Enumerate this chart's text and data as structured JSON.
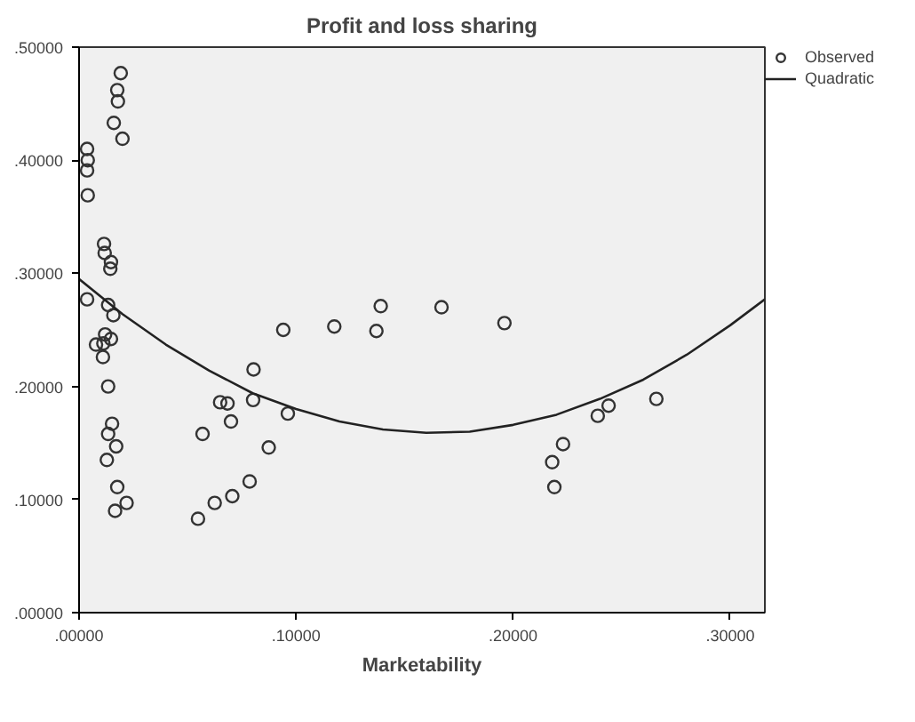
{
  "chart_data": {
    "type": "scatter",
    "title": "Profit and loss sharing",
    "xlabel": "Marketability",
    "xlim": [
      0,
      0.316
    ],
    "ylim": [
      0,
      0.5
    ],
    "xticks": [
      {
        "value": 0,
        "label": ".00000"
      },
      {
        "value": 0.1,
        "label": ".10000"
      },
      {
        "value": 0.2,
        "label": ".20000"
      },
      {
        "value": 0.3,
        "label": ".30000"
      }
    ],
    "yticks": [
      {
        "value": 0,
        "label": ".00000"
      },
      {
        "value": 0.1,
        "label": ".10000"
      },
      {
        "value": 0.2,
        "label": ".20000"
      },
      {
        "value": 0.3,
        "label": ".30000"
      },
      {
        "value": 0.4,
        "label": ".40000"
      },
      {
        "value": 0.5,
        "label": ".50000"
      }
    ],
    "grid": false,
    "legend": "top right",
    "series": [
      {
        "name": "Observed",
        "marker": "circle",
        "color": "#333333",
        "x": [
          0.0192,
          0.0176,
          0.0179,
          0.016,
          0.02,
          0.0037,
          0.004,
          0.0037,
          0.004,
          0.0115,
          0.0118,
          0.0147,
          0.0144,
          0.0037,
          0.0134,
          0.0158,
          0.012,
          0.0147,
          0.0112,
          0.0078,
          0.011,
          0.0134,
          0.0152,
          0.0134,
          0.0171,
          0.0128,
          0.0176,
          0.0219,
          0.0166,
          0.0548,
          0.0625,
          0.0706,
          0.0786,
          0.0874,
          0.0569,
          0.07,
          0.065,
          0.0684,
          0.0802,
          0.0962,
          0.0804,
          0.0941,
          0.1176,
          0.139,
          0.167,
          0.137,
          0.196,
          0.223,
          0.218,
          0.219,
          0.239,
          0.244,
          0.266
        ],
        "values": [
          0.477,
          0.462,
          0.452,
          0.433,
          0.419,
          0.41,
          0.4,
          0.391,
          0.369,
          0.326,
          0.318,
          0.31,
          0.304,
          0.277,
          0.272,
          0.263,
          0.246,
          0.242,
          0.238,
          0.237,
          0.226,
          0.2,
          0.167,
          0.158,
          0.147,
          0.135,
          0.111,
          0.097,
          0.09,
          0.083,
          0.097,
          0.103,
          0.116,
          0.146,
          0.158,
          0.169,
          0.186,
          0.185,
          0.188,
          0.176,
          0.215,
          0.25,
          0.253,
          0.271,
          0.27,
          0.249,
          0.256,
          0.149,
          0.133,
          0.111,
          0.174,
          0.183,
          0.189
        ]
      },
      {
        "name": "Quadratic",
        "type": "line",
        "color": "#222222",
        "x": [
          0,
          0.02,
          0.04,
          0.06,
          0.08,
          0.1,
          0.12,
          0.14,
          0.16,
          0.18,
          0.2,
          0.22,
          0.24,
          0.26,
          0.28,
          0.3,
          0.316
        ],
        "values": [
          0.295,
          0.264,
          0.237,
          0.214,
          0.194,
          0.18,
          0.169,
          0.162,
          0.159,
          0.16,
          0.166,
          0.175,
          0.189,
          0.206,
          0.228,
          0.254,
          0.277
        ]
      }
    ]
  }
}
